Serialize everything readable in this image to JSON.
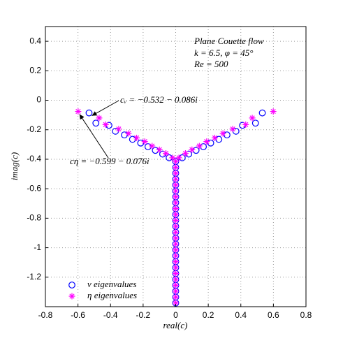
{
  "chart_data": {
    "type": "scatter",
    "title_lines": [
      "Plane Couette flow",
      "k = 6.5, φ = 45°",
      "Re = 500"
    ],
    "x_label": "real(c)",
    "y_label": "imag(c)",
    "annotations": [
      "cᵥ = −0.532 − 0.086i",
      "cη = −0.599 − 0.076i"
    ],
    "xlim": [
      -0.8,
      0.8
    ],
    "ylim": [
      -1.4,
      0.5
    ],
    "xticks": [
      -0.8,
      -0.6,
      -0.4,
      -0.2,
      0,
      0.2,
      0.4,
      0.6,
      0.8
    ],
    "yticks": [
      0.4,
      0.2,
      0,
      -0.2,
      -0.4,
      -0.6,
      -0.8,
      -1,
      -1.2
    ],
    "grid": true,
    "legend": "lower left",
    "series": [
      {
        "name": "v eigenvalues",
        "color": "#0000ff",
        "marker": "circle",
        "x": [
          -0.532,
          -0.49,
          -0.41,
          -0.37,
          -0.315,
          -0.265,
          -0.215,
          -0.17,
          -0.125,
          -0.08,
          -0.04,
          0,
          0.04,
          0.08,
          0.125,
          0.17,
          0.215,
          0.265,
          0.315,
          0.37,
          0.41,
          0.49,
          0.532,
          0,
          0,
          0,
          0,
          0,
          0,
          0,
          0,
          0,
          0,
          0,
          0,
          0,
          0,
          0,
          0,
          0,
          0,
          0,
          0,
          0,
          0,
          0,
          0
        ],
        "values": [
          -0.086,
          -0.155,
          -0.17,
          -0.21,
          -0.235,
          -0.265,
          -0.29,
          -0.315,
          -0.34,
          -0.365,
          -0.39,
          -0.415,
          -0.39,
          -0.365,
          -0.34,
          -0.315,
          -0.29,
          -0.265,
          -0.235,
          -0.21,
          -0.17,
          -0.155,
          -0.086,
          -0.455,
          -0.495,
          -0.535,
          -0.575,
          -0.615,
          -0.655,
          -0.695,
          -0.735,
          -0.775,
          -0.815,
          -0.855,
          -0.895,
          -0.935,
          -0.975,
          -1.015,
          -1.055,
          -1.095,
          -1.135,
          -1.175,
          -1.215,
          -1.255,
          -1.295,
          -1.335,
          -1.375
        ]
      },
      {
        "name": "η eigenvalues",
        "color": "#ff00ff",
        "marker": "star",
        "x": [
          -0.599,
          -0.47,
          -0.43,
          -0.35,
          -0.29,
          -0.24,
          -0.19,
          -0.145,
          -0.1,
          -0.06,
          -0.02,
          0,
          0.02,
          0.06,
          0.1,
          0.145,
          0.19,
          0.24,
          0.29,
          0.35,
          0.43,
          0.47,
          0.599,
          0,
          0,
          0,
          0,
          0,
          0,
          0,
          0,
          0,
          0,
          0,
          0,
          0,
          0,
          0,
          0,
          0,
          0,
          0,
          0,
          0,
          0,
          0,
          0
        ],
        "values": [
          -0.076,
          -0.12,
          -0.165,
          -0.195,
          -0.225,
          -0.255,
          -0.28,
          -0.31,
          -0.335,
          -0.36,
          -0.39,
          -0.415,
          -0.39,
          -0.36,
          -0.335,
          -0.31,
          -0.28,
          -0.255,
          -0.225,
          -0.195,
          -0.165,
          -0.12,
          -0.076,
          -0.455,
          -0.495,
          -0.535,
          -0.575,
          -0.615,
          -0.655,
          -0.695,
          -0.735,
          -0.775,
          -0.815,
          -0.855,
          -0.895,
          -0.935,
          -0.975,
          -1.015,
          -1.055,
          -1.095,
          -1.135,
          -1.175,
          -1.215,
          -1.255,
          -1.295,
          -1.335,
          -1.375
        ]
      }
    ]
  }
}
